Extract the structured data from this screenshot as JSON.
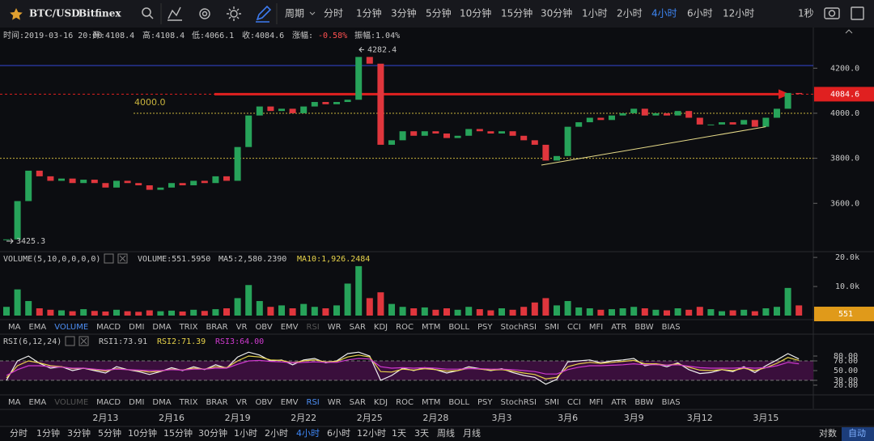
{
  "toolbar": {
    "symbol": "BTC/USD",
    "exchange": "Bitfinex",
    "period_label": "周期",
    "periods": [
      {
        "label": "分时"
      },
      {
        "label": "1分钟"
      },
      {
        "label": "3分钟"
      },
      {
        "label": "5分钟"
      },
      {
        "label": "10分钟"
      },
      {
        "label": "15分钟"
      },
      {
        "label": "30分钟"
      },
      {
        "label": "1小时"
      },
      {
        "label": "2小时"
      },
      {
        "label": "4小时",
        "active": true
      },
      {
        "label": "6小时"
      },
      {
        "label": "12小时"
      }
    ],
    "interval": "1秒"
  },
  "info": {
    "time": "时间:2019-03-16 20:00",
    "open": "开:4108.4",
    "high": "高:4108.4",
    "low": "低:4066.1",
    "close": "收:4084.6",
    "change_label": "涨幅:",
    "change": "-0.58%",
    "amplitude": "振幅:1.04%"
  },
  "volume_header": {
    "name": "VOLUME(5,10,0,0,0,0)",
    "volume": "VOLUME:551.5950",
    "ma5": "MA5:2,580.2390",
    "ma10": "MA10:1,926.2484"
  },
  "rsi_header": {
    "name": "RSI(6,12,24)",
    "rsi1": "RSI1:73.91",
    "rsi2": "RSI2:71.39",
    "rsi3": "RSI3:64.00"
  },
  "tab_rows": [
    {
      "items": [
        "MA",
        "EMA",
        "VOLUME",
        "MACD",
        "DMI",
        "DMA",
        "TRIX",
        "BRAR",
        "VR",
        "OBV",
        "EMV",
        "RSI",
        "WR",
        "SAR",
        "KDJ",
        "ROC",
        "MTM",
        "BOLL",
        "PSY",
        "StochRSI",
        "SMI",
        "CCI",
        "MFI",
        "ATR",
        "BBW",
        "BIAS"
      ],
      "active": 2,
      "muted": 11
    },
    {
      "items": [
        "MA",
        "EMA",
        "VOLUME",
        "MACD",
        "DMI",
        "DMA",
        "TRIX",
        "BRAR",
        "VR",
        "OBV",
        "EMV",
        "RSI",
        "WR",
        "SAR",
        "KDJ",
        "ROC",
        "MTM",
        "BOLL",
        "PSY",
        "StochRSI",
        "SMI",
        "CCI",
        "MFI",
        "ATR",
        "BBW",
        "BIAS"
      ],
      "active": 11,
      "muted": 2
    }
  ],
  "bottom_bar": {
    "periods": [
      {
        "label": "分时"
      },
      {
        "label": "1分钟"
      },
      {
        "label": "3分钟"
      },
      {
        "label": "5分钟"
      },
      {
        "label": "10分钟"
      },
      {
        "label": "15分钟"
      },
      {
        "label": "30分钟"
      },
      {
        "label": "1小时"
      },
      {
        "label": "2小时"
      },
      {
        "label": "4小时",
        "active": true
      },
      {
        "label": "6小时"
      },
      {
        "label": "12小时"
      },
      {
        "label": "1天"
      },
      {
        "label": "3天"
      },
      {
        "label": "周线"
      },
      {
        "label": "月线"
      }
    ],
    "log": "对数",
    "auto": "自动"
  },
  "chart_data": [
    {
      "type": "candlestick",
      "categories": [
        null,
        null,
        null,
        null,
        null,
        null,
        null,
        null,
        null,
        "2月13",
        null,
        null,
        null,
        null,
        null,
        "2月16",
        null,
        null,
        null,
        null,
        null,
        "2月19",
        null,
        null,
        null,
        null,
        null,
        "2月22",
        null,
        null,
        null,
        null,
        null,
        "2月25",
        null,
        null,
        null,
        null,
        null,
        "2月28",
        null,
        null,
        null,
        null,
        null,
        "3月3",
        null,
        null,
        null,
        null,
        null,
        "3月6",
        null,
        null,
        null,
        null,
        null,
        "3月9",
        null,
        null,
        null,
        null,
        null,
        "3月12",
        null,
        null,
        null,
        null,
        null,
        "3月15",
        null,
        null,
        null
      ],
      "values": [
        3440,
        3610,
        3745,
        3720,
        3700,
        3710,
        3690,
        3705,
        3690,
        3670,
        3700,
        3690,
        3680,
        3660,
        3670,
        3690,
        3680,
        3700,
        3690,
        3720,
        3700,
        3850,
        3990,
        4030,
        4010,
        4020,
        4000,
        4030,
        4050,
        4040,
        4050,
        4060,
        4250,
        4220,
        3860,
        3880,
        3920,
        3900,
        3920,
        3910,
        3890,
        3900,
        3930,
        3920,
        3910,
        3920,
        3900,
        3880,
        3860,
        3790,
        3810,
        3940,
        3960,
        3980,
        3970,
        3990,
        4000,
        4020,
        3990,
        4000,
        3990,
        4010,
        3980,
        3950,
        3950,
        3960,
        3950,
        3970,
        3940,
        3980,
        4020,
        4090,
        4085
      ],
      "up_color": "#27a35a",
      "down_color": "#e0363d",
      "ylim": [
        3389,
        4316
      ],
      "yticks": [
        {
          "value": 3600,
          "label": "3600.0"
        },
        {
          "value": 3800,
          "label": "3800.0"
        },
        {
          "value": 4000,
          "label": "4000.0"
        },
        {
          "value": 4200,
          "label": "4200.0"
        }
      ],
      "levels": [
        {
          "value": 4212,
          "color": "#3447d6"
        },
        {
          "value": 4000,
          "color": "#c9b33d",
          "label": "4000.0"
        },
        {
          "value": 3800,
          "color": "#c9b33d"
        }
      ],
      "trendline": {
        "x": [
          48.6,
          69
        ],
        "y": [
          3770,
          3940
        ],
        "color": "#e8dc8a"
      },
      "max": 4282.4,
      "min": 3425.3,
      "last": 4084.6,
      "last_color": "#e02020"
    },
    {
      "type": "bar",
      "values": [
        3000,
        9000,
        5000,
        2500,
        2000,
        1800,
        1500,
        2200,
        1600,
        1400,
        2000,
        1500,
        1300,
        1800,
        1500,
        1700,
        1400,
        2000,
        1600,
        2200,
        2500,
        6000,
        10500,
        5000,
        3000,
        3500,
        2500,
        4000,
        3000,
        2500,
        3500,
        11000,
        17000,
        6000,
        8000,
        4000,
        3000,
        2500,
        2800,
        2000,
        2500,
        2000,
        3000,
        2200,
        1800,
        2500,
        2000,
        3000,
        4500,
        6000,
        3500,
        5000,
        2800,
        2500,
        2000,
        2200,
        2500,
        3000,
        2500,
        2000,
        1800,
        2500,
        2000,
        3000,
        2200,
        1500,
        1800,
        2000,
        1500,
        2500,
        3000,
        9500,
        3500
      ],
      "ylim": [
        0,
        21700
      ],
      "yticks": [
        {
          "value": 10000,
          "label": "10.0k"
        },
        {
          "value": 20000,
          "label": "20.0k"
        }
      ],
      "last": {
        "value": 551.595,
        "label": "551"
      }
    },
    {
      "type": "line",
      "series": [
        {
          "name": "RSI1",
          "color": "#f0f0f0",
          "values": [
            30,
            70,
            80,
            65,
            55,
            58,
            50,
            55,
            50,
            45,
            58,
            52,
            48,
            42,
            48,
            56,
            50,
            58,
            52,
            62,
            55,
            78,
            88,
            82,
            70,
            72,
            62,
            72,
            75,
            66,
            70,
            85,
            88,
            80,
            30,
            40,
            55,
            50,
            56,
            52,
            45,
            50,
            58,
            54,
            50,
            54,
            46,
            40,
            36,
            22,
            32,
            68,
            70,
            72,
            66,
            70,
            72,
            75,
            60,
            64,
            58,
            66,
            52,
            44,
            46,
            52,
            48,
            58,
            46,
            60,
            72,
            85,
            74
          ]
        },
        {
          "name": "RSI2",
          "color": "#e8d34a",
          "values": [
            35,
            60,
            70,
            66,
            60,
            58,
            54,
            55,
            52,
            49,
            54,
            52,
            50,
            47,
            49,
            53,
            51,
            55,
            53,
            58,
            56,
            70,
            80,
            78,
            72,
            71,
            66,
            70,
            72,
            68,
            69,
            78,
            82,
            78,
            48,
            47,
            53,
            51,
            54,
            52,
            49,
            50,
            55,
            53,
            51,
            52,
            49,
            45,
            42,
            33,
            36,
            58,
            64,
            67,
            65,
            67,
            69,
            71,
            64,
            64,
            61,
            64,
            57,
            51,
            50,
            52,
            50,
            55,
            50,
            56,
            65,
            77,
            71
          ]
        },
        {
          "name": "RSI3",
          "color": "#d03ad0",
          "values": [
            40,
            52,
            60,
            60,
            58,
            57,
            55,
            55,
            53,
            51,
            53,
            52,
            51,
            50,
            50,
            52,
            51,
            53,
            53,
            55,
            55,
            63,
            70,
            71,
            69,
            68,
            66,
            67,
            68,
            67,
            67,
            72,
            75,
            74,
            58,
            55,
            56,
            55,
            56,
            55,
            53,
            53,
            54,
            54,
            53,
            53,
            52,
            50,
            48,
            43,
            43,
            52,
            57,
            60,
            60,
            61,
            62,
            64,
            62,
            62,
            61,
            62,
            59,
            56,
            55,
            55,
            55,
            56,
            55,
            56,
            60,
            67,
            64
          ]
        }
      ],
      "ylim": [
        0,
        100
      ],
      "yticks": [
        {
          "value": 20,
          "label": "20.00"
        },
        {
          "value": 30,
          "label": "30.00"
        },
        {
          "value": 50,
          "label": "50.00"
        },
        {
          "value": 70,
          "label": "70.00"
        },
        {
          "value": 80,
          "label": "80.00"
        }
      ],
      "band": [
        30,
        70
      ],
      "band_color": "#3a0f3c"
    }
  ]
}
